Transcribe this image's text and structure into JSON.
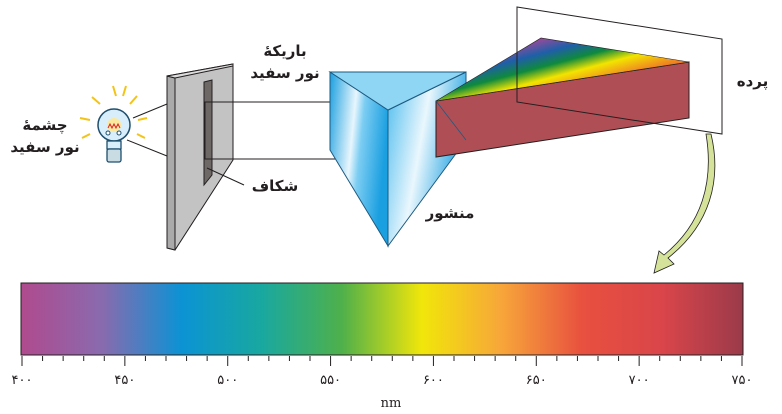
{
  "labels": {
    "source_line1": "چشمهٔ",
    "source_line2": "نور سفید",
    "beam_line1": "باریکهٔ",
    "beam_line2": "نور سفید",
    "slit": "شکاف",
    "prism": "منشور",
    "screen": "پرده"
  },
  "spectrum": {
    "unit": "nm",
    "tick_labels": [
      "۴۰۰",
      "۴۵۰",
      "۵۰۰",
      "۵۵۰",
      "۶۰۰",
      "۶۵۰",
      "۷۰۰",
      "۷۵۰"
    ],
    "range_nm": [
      400,
      750
    ],
    "major_step_nm": 50,
    "minor_step_nm": 10,
    "colors": [
      "#b04a8e",
      "#8a6aae",
      "#0b93d4",
      "#19a8a0",
      "#4fb04a",
      "#f1e60a",
      "#f7a53a",
      "#e8503f",
      "#d9454a",
      "#9b3a4a"
    ]
  },
  "colors": {
    "screen_beam": "#b04e55",
    "arrow": "#d5e39a",
    "slit_plate": "#c0c0c0",
    "prism": "#29aee8"
  }
}
